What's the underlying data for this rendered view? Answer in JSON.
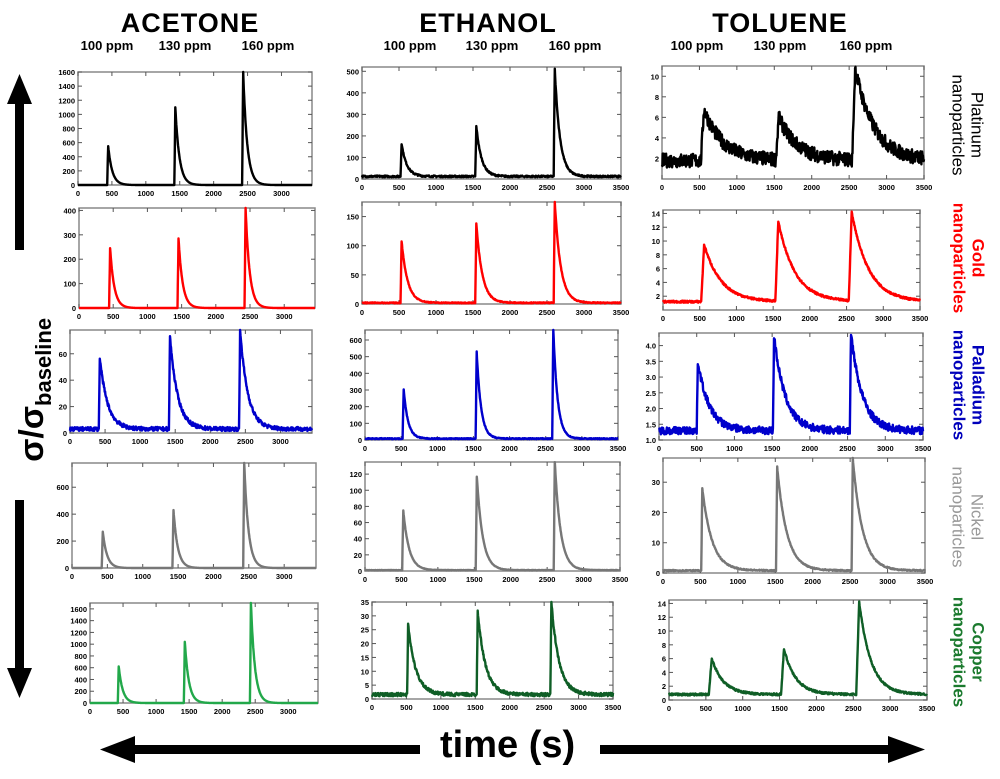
{
  "columns": [
    {
      "title": "ACETONE",
      "ppm": [
        "100 ppm",
        "130 ppm",
        "160 ppm"
      ]
    },
    {
      "title": "ETHANOL",
      "ppm": [
        "100 ppm",
        "130 ppm",
        "160 ppm"
      ]
    },
    {
      "title": "TOLUENE",
      "ppm": [
        "100 ppm",
        "130 ppm",
        "160 ppm"
      ]
    }
  ],
  "rows": [
    {
      "label1": "Platinum",
      "label2": "nanoparticles",
      "color": "#000000",
      "bold1": false,
      "bold2": false
    },
    {
      "label1": "Gold",
      "label2": "nanoparticles",
      "color": "#ff0000",
      "bold1": true,
      "bold2": true
    },
    {
      "label1": "Palladium",
      "label2": "nanoparticles",
      "color": "#0000bb",
      "bold1": true,
      "bold2": true
    },
    {
      "label1": "Nickel",
      "label2": "nanoparticles",
      "color": "#999999",
      "bold1": false,
      "bold2": false
    },
    {
      "label1": "Copper",
      "label2": "nanoparticles",
      "color": "#1b7a2e",
      "bold1": true,
      "bold2": true
    }
  ],
  "axes": {
    "ylabel_main": "σ/σ",
    "ylabel_sub": "baseline",
    "xlabel": "time (s)"
  },
  "chart_data": [
    {
      "type": "line",
      "gas": "ACETONE",
      "material": "Platinum",
      "color": "#000000",
      "xlim": [
        0,
        3450
      ],
      "xticks": [
        0,
        500,
        1000,
        1500,
        2000,
        2500,
        3000
      ],
      "ylim": [
        0,
        1600
      ],
      "yticks": [
        0,
        200,
        400,
        600,
        800,
        1000,
        1200,
        1400,
        1600
      ],
      "baseline": 0,
      "noise": 0,
      "tau": 60,
      "peaks": [
        [
          430,
          550
        ],
        [
          1420,
          1100
        ],
        [
          2420,
          1600
        ]
      ]
    },
    {
      "type": "line",
      "gas": "ETHANOL",
      "material": "Platinum",
      "color": "#000000",
      "xlim": [
        0,
        3500
      ],
      "xticks": [
        0,
        500,
        1000,
        1500,
        2000,
        2500,
        3000,
        3500
      ],
      "ylim": [
        0,
        520
      ],
      "yticks": [
        0,
        100,
        200,
        300,
        400,
        500
      ],
      "baseline": 12,
      "noise": 4,
      "tau": 70,
      "peaks": [
        [
          520,
          165
        ],
        [
          1530,
          245
        ],
        [
          2590,
          510
        ]
      ]
    },
    {
      "type": "line",
      "gas": "TOLUENE",
      "material": "Platinum",
      "color": "#000000",
      "xlim": [
        0,
        3500
      ],
      "xticks": [
        0,
        500,
        1000,
        1500,
        2000,
        2500,
        3000,
        3500
      ],
      "ylim": [
        0,
        11
      ],
      "yticks": [
        2,
        4,
        6,
        8,
        10
      ],
      "baseline": 1.8,
      "noise": 0.7,
      "tau": 250,
      "peaks": [
        [
          520,
          6.8
        ],
        [
          1520,
          6
        ],
        [
          2540,
          10.8
        ]
      ]
    },
    {
      "type": "line",
      "gas": "ACETONE",
      "material": "Gold",
      "color": "#ff0000",
      "xlim": [
        0,
        3450
      ],
      "xticks": [
        0,
        500,
        1000,
        1500,
        2000,
        2500,
        3000
      ],
      "ylim": [
        0,
        410
      ],
      "yticks": [
        0,
        100,
        200,
        300,
        400
      ],
      "baseline": 0,
      "noise": 0,
      "tau": 60,
      "peaks": [
        [
          440,
          245
        ],
        [
          1440,
          285
        ],
        [
          2420,
          410
        ]
      ]
    },
    {
      "type": "line",
      "gas": "ETHANOL",
      "material": "Gold",
      "color": "#ff0000",
      "xlim": [
        0,
        3500
      ],
      "xticks": [
        0,
        500,
        1000,
        1500,
        2000,
        2500,
        3000,
        3500
      ],
      "ylim": [
        0,
        175
      ],
      "yticks": [
        0,
        50,
        100,
        150
      ],
      "baseline": 2,
      "noise": 0.8,
      "tau": 80,
      "peaks": [
        [
          520,
          108
        ],
        [
          1530,
          138
        ],
        [
          2590,
          175
        ]
      ]
    },
    {
      "type": "line",
      "gas": "TOLUENE",
      "material": "Gold",
      "color": "#ff0000",
      "xlim": [
        0,
        3500
      ],
      "xticks": [
        0,
        500,
        1000,
        1500,
        2000,
        2500,
        3000,
        3500
      ],
      "ylim": [
        0,
        14.5
      ],
      "yticks": [
        2,
        4,
        6,
        8,
        10,
        12,
        14
      ],
      "baseline": 1.2,
      "noise": 0.15,
      "tau": 230,
      "peaks": [
        [
          520,
          9.5
        ],
        [
          1530,
          12.8
        ],
        [
          2530,
          14.2
        ]
      ]
    },
    {
      "type": "line",
      "gas": "ACETONE",
      "material": "Palladium",
      "color": "#0000cc",
      "xlim": [
        0,
        3450
      ],
      "xticks": [
        0,
        500,
        1000,
        1500,
        2000,
        2500,
        3000
      ],
      "ylim": [
        0,
        78
      ],
      "yticks": [
        0,
        20,
        40,
        60
      ],
      "baseline": 3,
      "noise": 1.5,
      "tau": 110,
      "peaks": [
        [
          410,
          57
        ],
        [
          1410,
          73
        ],
        [
          2410,
          78
        ]
      ]
    },
    {
      "type": "line",
      "gas": "ETHANOL",
      "material": "Palladium",
      "color": "#0000cc",
      "xlim": [
        0,
        3500
      ],
      "xticks": [
        0,
        500,
        1000,
        1500,
        2000,
        2500,
        3000,
        3500
      ],
      "ylim": [
        0,
        660
      ],
      "yticks": [
        0,
        100,
        200,
        300,
        400,
        500,
        600
      ],
      "baseline": 8,
      "noise": 3,
      "tau": 60,
      "peaks": [
        [
          520,
          305
        ],
        [
          1530,
          530
        ],
        [
          2590,
          660
        ]
      ]
    },
    {
      "type": "line",
      "gas": "TOLUENE",
      "material": "Palladium",
      "color": "#0000cc",
      "xlim": [
        0,
        3500
      ],
      "xticks": [
        0,
        500,
        1000,
        1500,
        2000,
        2500,
        3000,
        3500
      ],
      "ylim": [
        1,
        4.4
      ],
      "yticks": [
        1.0,
        1.5,
        2.0,
        2.5,
        3.0,
        3.5,
        4.0
      ],
      "baseline": 1.3,
      "noise": 0.12,
      "tau": 150,
      "peaks": [
        [
          500,
          3.5
        ],
        [
          1510,
          4.3
        ],
        [
          2530,
          4.4
        ]
      ]
    },
    {
      "type": "line",
      "gas": "ACETONE",
      "material": "Nickel",
      "color": "#777777",
      "xlim": [
        0,
        3450
      ],
      "xticks": [
        0,
        500,
        1000,
        1500,
        2000,
        2500,
        3000
      ],
      "ylim": [
        0,
        780
      ],
      "yticks": [
        0,
        200,
        400,
        600
      ],
      "baseline": 0,
      "noise": 0,
      "tau": 60,
      "peaks": [
        [
          420,
          270
        ],
        [
          1420,
          430
        ],
        [
          2420,
          780
        ]
      ]
    },
    {
      "type": "line",
      "gas": "ETHANOL",
      "material": "Nickel",
      "color": "#777777",
      "xlim": [
        0,
        3500
      ],
      "xticks": [
        0,
        500,
        1000,
        1500,
        2000,
        2500,
        3000,
        3500
      ],
      "ylim": [
        0,
        135
      ],
      "yticks": [
        0,
        20,
        40,
        60,
        80,
        100,
        120
      ],
      "baseline": 1,
      "noise": 0.3,
      "tau": 80,
      "peaks": [
        [
          510,
          75
        ],
        [
          1520,
          117
        ],
        [
          2590,
          135
        ]
      ]
    },
    {
      "type": "line",
      "gas": "TOLUENE",
      "material": "Nickel",
      "color": "#777777",
      "xlim": [
        0,
        3500
      ],
      "xticks": [
        0,
        500,
        1000,
        1500,
        2000,
        2500,
        3000,
        3500
      ],
      "ylim": [
        0,
        38
      ],
      "yticks": [
        0,
        10,
        20,
        30
      ],
      "baseline": 0.8,
      "noise": 0.2,
      "tau": 130,
      "peaks": [
        [
          510,
          28
        ],
        [
          1510,
          35
        ],
        [
          2520,
          38
        ]
      ]
    },
    {
      "type": "line",
      "gas": "ACETONE",
      "material": "Copper",
      "color": "#22a84a",
      "xlim": [
        0,
        3450
      ],
      "xticks": [
        0,
        500,
        1000,
        1500,
        2000,
        2500,
        3000
      ],
      "ylim": [
        0,
        1700
      ],
      "yticks": [
        0,
        200,
        400,
        600,
        800,
        1000,
        1200,
        1400,
        1600
      ],
      "baseline": 0,
      "noise": 0,
      "tau": 60,
      "peaks": [
        [
          420,
          620
        ],
        [
          1420,
          1040
        ],
        [
          2420,
          1700
        ]
      ]
    },
    {
      "type": "line",
      "gas": "ETHANOL",
      "material": "Copper",
      "color": "#0f5e26",
      "xlim": [
        0,
        3500
      ],
      "xticks": [
        0,
        500,
        1000,
        1500,
        2000,
        2500,
        3000,
        3500
      ],
      "ylim": [
        0,
        35
      ],
      "yticks": [
        0,
        5,
        10,
        15,
        20,
        25,
        30,
        35
      ],
      "baseline": 1.6,
      "noise": 0.6,
      "tau": 110,
      "peaks": [
        [
          510,
          27
        ],
        [
          1520,
          32
        ],
        [
          2590,
          35
        ]
      ]
    },
    {
      "type": "line",
      "gas": "TOLUENE",
      "material": "Copper",
      "color": "#0f5e26",
      "xlim": [
        0,
        3500
      ],
      "xticks": [
        0,
        500,
        1000,
        1500,
        2000,
        2500,
        3000,
        3500
      ],
      "ylim": [
        0,
        14.5
      ],
      "yticks": [
        0,
        2,
        4,
        6,
        8,
        10,
        12,
        14
      ],
      "baseline": 0.8,
      "noise": 0.15,
      "tau": 160,
      "peaks": [
        [
          540,
          6
        ],
        [
          1520,
          7.4
        ],
        [
          2540,
          14.2
        ]
      ]
    }
  ]
}
